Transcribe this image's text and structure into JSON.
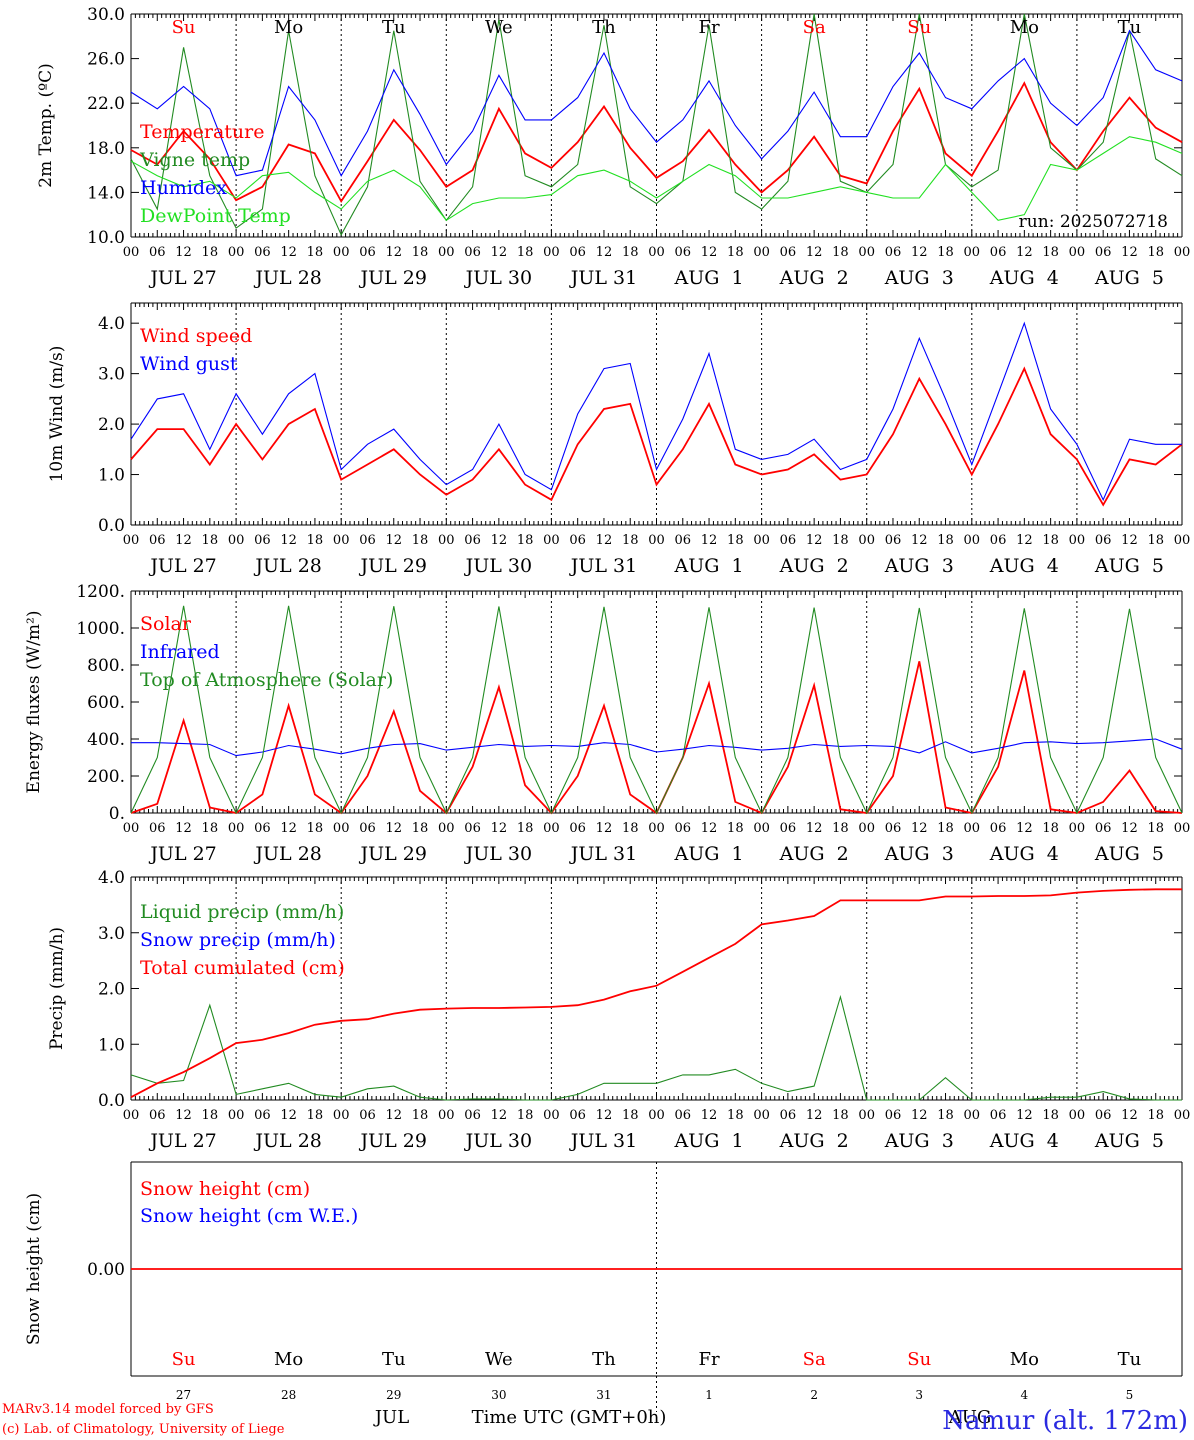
{
  "colors": {
    "red": "#ff0000",
    "green": "#228b22",
    "blue": "#0000ff",
    "lightgreen": "#22e022",
    "black": "#000000",
    "weekend": "#ff0000"
  },
  "time_axis": {
    "n_days": 10,
    "hour_ticks": [
      "00",
      "06",
      "12",
      "18",
      "00",
      "06",
      "12",
      "18",
      "00",
      "06",
      "12",
      "18",
      "00",
      "06",
      "12",
      "18",
      "00",
      "06",
      "12",
      "18",
      "00",
      "06",
      "12",
      "18",
      "00",
      "06",
      "12",
      "18",
      "00",
      "06",
      "12",
      "18",
      "00",
      "06",
      "12",
      "18",
      "00",
      "06",
      "12",
      "18",
      "00"
    ],
    "date_labels": [
      "JUL 27",
      "JUL 28",
      "JUL 29",
      "JUL 30",
      "JUL 31",
      "AUG  1",
      "AUG  2",
      "AUG  3",
      "AUG  4",
      "AUG  5"
    ],
    "weekdays": [
      "Su",
      "Mo",
      "Tu",
      "We",
      "Th",
      "Fr",
      "Sa",
      "Su",
      "Mo",
      "Tu"
    ],
    "weekend_flags": [
      true,
      false,
      false,
      false,
      false,
      false,
      true,
      true,
      false,
      false
    ],
    "day_numbers": [
      "27",
      "28",
      "29",
      "30",
      "31",
      "1",
      "2",
      "3",
      "4",
      "5"
    ]
  },
  "chart_data": [
    {
      "type": "line",
      "ylabel": "2m Temp. (ºC)",
      "ylim": [
        10,
        30
      ],
      "yticks": [
        "10.0",
        "14.0",
        "18.0",
        "22.0",
        "26.0",
        "30.0"
      ],
      "ytick_values": [
        10,
        14,
        18,
        22,
        26,
        30
      ],
      "annotation": "run: 2025072718",
      "x_hours": [
        0,
        6,
        12,
        18,
        24,
        30,
        36,
        42,
        48,
        54,
        60,
        66,
        72,
        78,
        84,
        90,
        96,
        102,
        108,
        114,
        120,
        126,
        132,
        138,
        144,
        150,
        156,
        162,
        168,
        174,
        180,
        186,
        192,
        198,
        204,
        210,
        216,
        222,
        228,
        234,
        240
      ],
      "series": [
        {
          "name": "Temperature",
          "color": "red",
          "values": [
            17.8,
            16.5,
            19.5,
            17.0,
            13.3,
            14.5,
            18.3,
            17.5,
            13.2,
            16.8,
            20.5,
            17.8,
            14.5,
            16.0,
            21.5,
            17.5,
            16.2,
            18.5,
            21.7,
            18.0,
            15.3,
            16.8,
            19.6,
            16.5,
            14.0,
            16.0,
            19.0,
            15.5,
            14.8,
            19.5,
            23.3,
            17.5,
            15.5,
            19.5,
            23.8,
            18.5,
            16.0,
            19.5,
            22.5,
            19.8,
            18.5
          ]
        },
        {
          "name": "Vigne temp",
          "color": "green",
          "values": [
            17.0,
            12.5,
            27.0,
            15.5,
            10.8,
            12.5,
            28.5,
            15.5,
            10.2,
            14.5,
            28.5,
            15.0,
            11.5,
            14.5,
            29.5,
            15.5,
            14.5,
            16.5,
            29.0,
            14.5,
            13.0,
            15.0,
            29.0,
            14.0,
            12.5,
            15.0,
            30.0,
            15.0,
            14.0,
            16.5,
            30.0,
            16.5,
            14.5,
            16.0,
            30.0,
            18.0,
            16.0,
            18.5,
            28.5,
            17.0,
            15.5
          ]
        },
        {
          "name": "Humidex",
          "color": "blue",
          "values": [
            23.0,
            21.5,
            23.5,
            21.5,
            15.5,
            16.0,
            23.5,
            20.5,
            15.5,
            19.5,
            25.0,
            21.0,
            16.5,
            19.5,
            24.5,
            20.5,
            20.5,
            22.5,
            26.5,
            21.5,
            18.5,
            20.5,
            24.0,
            20.0,
            17.0,
            19.5,
            23.0,
            19.0,
            19.0,
            23.5,
            26.5,
            22.5,
            21.5,
            24.0,
            26.0,
            22.0,
            20.0,
            22.5,
            28.5,
            25.0,
            24.0
          ]
        },
        {
          "name": "DewPoint Temp",
          "color": "lightgreen",
          "values": [
            16.8,
            15.5,
            14.5,
            15.0,
            13.5,
            15.5,
            15.8,
            14.0,
            12.5,
            15.0,
            16.0,
            14.5,
            11.5,
            13.0,
            13.5,
            13.5,
            13.8,
            15.5,
            16.0,
            15.0,
            13.5,
            15.0,
            16.5,
            15.5,
            13.5,
            13.5,
            14.0,
            14.5,
            14.0,
            13.5,
            13.5,
            16.5,
            14.0,
            11.5,
            12.0,
            16.5,
            16.0,
            17.5,
            19.0,
            18.5,
            17.5
          ]
        }
      ]
    },
    {
      "type": "line",
      "ylabel": "10m Wind (m/s)",
      "ylim": [
        0,
        4.4
      ],
      "yticks": [
        "0.0",
        "1.0",
        "2.0",
        "3.0",
        "4.0"
      ],
      "ytick_values": [
        0,
        1,
        2,
        3,
        4
      ],
      "x_hours": [
        0,
        6,
        12,
        18,
        24,
        30,
        36,
        42,
        48,
        54,
        60,
        66,
        72,
        78,
        84,
        90,
        96,
        102,
        108,
        114,
        120,
        126,
        132,
        138,
        144,
        150,
        156,
        162,
        168,
        174,
        180,
        186,
        192,
        198,
        204,
        210,
        216,
        222,
        228,
        234,
        240
      ],
      "series": [
        {
          "name": "Wind speed",
          "color": "red",
          "values": [
            1.3,
            1.9,
            1.9,
            1.2,
            2.0,
            1.3,
            2.0,
            2.3,
            0.9,
            1.2,
            1.5,
            1.0,
            0.6,
            0.9,
            1.5,
            0.8,
            0.5,
            1.6,
            2.3,
            2.4,
            0.8,
            1.5,
            2.4,
            1.2,
            1.0,
            1.1,
            1.4,
            0.9,
            1.0,
            1.8,
            2.9,
            2.0,
            1.0,
            2.0,
            3.1,
            1.8,
            1.3,
            0.4,
            1.3,
            1.2,
            1.6
          ]
        },
        {
          "name": "Wind gust",
          "color": "blue",
          "values": [
            1.7,
            2.5,
            2.6,
            1.5,
            2.6,
            1.8,
            2.6,
            3.0,
            1.1,
            1.6,
            1.9,
            1.3,
            0.8,
            1.1,
            2.0,
            1.0,
            0.7,
            2.2,
            3.1,
            3.2,
            1.1,
            2.1,
            3.4,
            1.5,
            1.3,
            1.4,
            1.7,
            1.1,
            1.3,
            2.3,
            3.7,
            2.5,
            1.2,
            2.6,
            4.0,
            2.3,
            1.6,
            0.5,
            1.7,
            1.6,
            1.6
          ]
        }
      ]
    },
    {
      "type": "line",
      "ylabel": "Energy fluxes (W/m²)",
      "ylim": [
        0,
        1200
      ],
      "yticks": [
        "0.",
        "200.",
        "400.",
        "600.",
        "800.",
        "1000.",
        "1200."
      ],
      "ytick_values": [
        0,
        200,
        400,
        600,
        800,
        1000,
        1200
      ],
      "x_hours": [
        0,
        6,
        12,
        18,
        24,
        30,
        36,
        42,
        48,
        54,
        60,
        66,
        72,
        78,
        84,
        90,
        96,
        102,
        108,
        114,
        120,
        126,
        132,
        138,
        144,
        150,
        156,
        162,
        168,
        174,
        180,
        186,
        192,
        198,
        204,
        210,
        216,
        222,
        228,
        234,
        240
      ],
      "series": [
        {
          "name": "Solar",
          "color": "red",
          "values": [
            0,
            50,
            500,
            30,
            0,
            100,
            580,
            100,
            0,
            200,
            550,
            120,
            0,
            250,
            680,
            150,
            0,
            200,
            580,
            100,
            0,
            300,
            700,
            60,
            0,
            250,
            690,
            20,
            0,
            200,
            820,
            30,
            0,
            250,
            770,
            20,
            0,
            60,
            230,
            10,
            0
          ]
        },
        {
          "name": "Infrared",
          "color": "blue",
          "values": [
            380,
            380,
            375,
            370,
            310,
            330,
            365,
            345,
            320,
            350,
            370,
            375,
            340,
            355,
            370,
            360,
            365,
            360,
            380,
            370,
            330,
            345,
            365,
            355,
            340,
            350,
            370,
            360,
            365,
            360,
            325,
            385,
            325,
            350,
            380,
            385,
            375,
            380,
            390,
            400,
            345
          ]
        },
        {
          "name": "Top of Atmosphere (Solar)",
          "color": "green",
          "values": [
            0,
            300,
            1120,
            300,
            0,
            300,
            1120,
            300,
            0,
            300,
            1118,
            300,
            0,
            300,
            1116,
            300,
            0,
            300,
            1114,
            300,
            0,
            300,
            1112,
            300,
            0,
            300,
            1110,
            300,
            0,
            300,
            1108,
            300,
            0,
            300,
            1106,
            300,
            0,
            300,
            1104,
            300,
            0
          ]
        }
      ]
    },
    {
      "type": "line",
      "ylabel": "Precip (mm/h)",
      "ylim": [
        0,
        4
      ],
      "yticks": [
        "0.0",
        "1.0",
        "2.0",
        "3.0",
        "4.0"
      ],
      "ytick_values": [
        0,
        1,
        2,
        3,
        4
      ],
      "x_hours": [
        0,
        6,
        12,
        18,
        24,
        30,
        36,
        42,
        48,
        54,
        60,
        66,
        72,
        78,
        84,
        90,
        96,
        102,
        108,
        114,
        120,
        126,
        132,
        138,
        144,
        150,
        156,
        162,
        168,
        174,
        180,
        186,
        192,
        198,
        204,
        210,
        216,
        222,
        228,
        234,
        240
      ],
      "series": [
        {
          "name": "Liquid precip (mm/h)",
          "color": "green",
          "values": [
            0.45,
            0.3,
            0.35,
            1.7,
            0.1,
            0.2,
            0.3,
            0.1,
            0.05,
            0.2,
            0.25,
            0.05,
            0.0,
            0.02,
            0.02,
            0.0,
            0.0,
            0.1,
            0.3,
            0.3,
            0.3,
            0.45,
            0.45,
            0.55,
            0.3,
            0.15,
            0.25,
            1.85,
            0.0,
            0.0,
            0.0,
            0.4,
            0.0,
            0.0,
            0.0,
            0.05,
            0.05,
            0.15,
            0.02,
            0.0,
            0.0
          ]
        },
        {
          "name": "Snow precip (mm/h)",
          "color": "blue",
          "values": [
            0,
            0,
            0,
            0,
            0,
            0,
            0,
            0,
            0,
            0,
            0,
            0,
            0,
            0,
            0,
            0,
            0,
            0,
            0,
            0,
            0,
            0,
            0,
            0,
            0,
            0,
            0,
            0,
            0,
            0,
            0,
            0,
            0,
            0,
            0,
            0,
            0,
            0,
            0,
            0,
            0
          ]
        },
        {
          "name": "Total cumulated (cm)",
          "color": "red",
          "values": [
            0.05,
            0.3,
            0.5,
            0.75,
            1.02,
            1.08,
            1.2,
            1.35,
            1.42,
            1.45,
            1.55,
            1.62,
            1.64,
            1.65,
            1.65,
            1.66,
            1.67,
            1.7,
            1.8,
            1.95,
            2.05,
            2.3,
            2.55,
            2.8,
            3.15,
            3.22,
            3.3,
            3.58,
            3.58,
            3.58,
            3.58,
            3.65,
            3.65,
            3.66,
            3.66,
            3.67,
            3.72,
            3.75,
            3.77,
            3.78,
            3.78
          ]
        }
      ]
    },
    {
      "type": "line",
      "ylabel": "Snow height (cm)",
      "ylim": [
        -1,
        1
      ],
      "yticks": [
        "0.00"
      ],
      "ytick_values": [
        0
      ],
      "x_hours": [
        0,
        240
      ],
      "series": [
        {
          "name": "Snow height (cm)",
          "color": "red",
          "values": [
            0,
            0
          ]
        },
        {
          "name": "Snow height (cm W.E.)",
          "color": "blue",
          "values": [
            0,
            0
          ]
        }
      ]
    }
  ],
  "footer": {
    "model_credit": "MARv3.14 model forced by GFS",
    "lab_credit": "(c) Lab. of Climatology, University of Liege",
    "month_label": "JUL",
    "month_label_2": "AUG",
    "time_axis_label": "Time UTC (GMT+0h)",
    "station_label": "Namur (alt. 172m)"
  }
}
